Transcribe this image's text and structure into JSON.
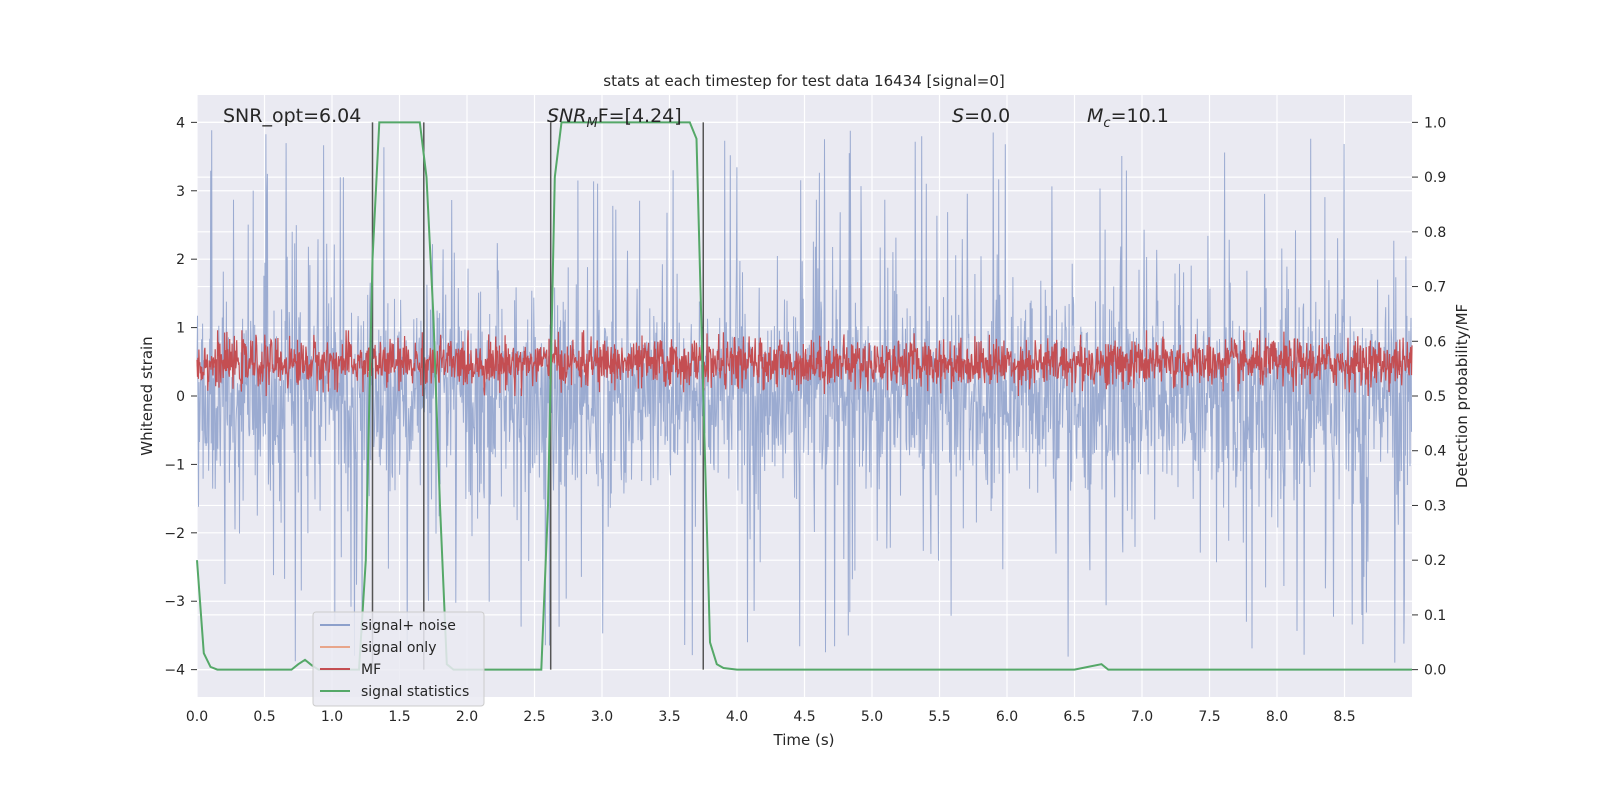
{
  "chart_data": {
    "type": "line",
    "title": "stats at each timestep for test data 16434 [signal=0]",
    "xlabel": "Time (s)",
    "ylabel_left": "Whitened strain",
    "ylabel_right": "Detection probability/MF",
    "xlim": [
      0,
      9.0
    ],
    "ylim_left": [
      -4.4,
      4.4
    ],
    "ylim_right": [
      -0.05,
      1.05
    ],
    "xticks": [
      "0.0",
      "0.5",
      "1.0",
      "1.5",
      "2.0",
      "2.5",
      "3.0",
      "3.5",
      "4.0",
      "4.5",
      "5.0",
      "5.5",
      "6.0",
      "6.5",
      "7.0",
      "7.5",
      "8.0",
      "8.5"
    ],
    "yticks_left": [
      "−4",
      "−3",
      "−2",
      "−1",
      "0",
      "1",
      "2",
      "3",
      "4"
    ],
    "yticks_right": [
      "0.0",
      "0.1",
      "0.2",
      "0.3",
      "0.4",
      "0.5",
      "0.6",
      "0.7",
      "0.8",
      "0.9",
      "1.0"
    ],
    "grid": true,
    "legend_position": "lower-left",
    "legend": [
      {
        "label": "signal+ noise",
        "color": "#8da0cb"
      },
      {
        "label": "signal only",
        "color": "#e8a58a"
      },
      {
        "label": "MF",
        "color": "#c44e52"
      },
      {
        "label": "signal statistics",
        "color": "#55a868"
      }
    ],
    "annotations": {
      "snr_opt": "SNR_opt=6.04",
      "snr_mf_main": "SNR",
      "snr_mf_sub": "M",
      "snr_mf_rest": "F=[4.24]",
      "s_main": "S",
      "s_rest": "=0.0",
      "mc_main": "M",
      "mc_sub": "c",
      "mc_rest": "=10.1"
    },
    "series": [
      {
        "name": "signal+ noise",
        "axis": "left",
        "style": "dense noise, amplitude mostly within ±1.6 with spikes to ±4",
        "envelope": {
          "typical": 1.6,
          "peak_max": 3.93,
          "peak_min": -4.0
        }
      },
      {
        "name": "signal only",
        "axis": "left",
        "values": "zero (not visible)"
      },
      {
        "name": "MF",
        "axis": "right",
        "style": "dense noise band",
        "band": [
          0.5,
          0.62
        ],
        "peak": 0.62
      },
      {
        "name": "signal statistics",
        "axis": "right",
        "x": [
          0.0,
          0.05,
          0.1,
          0.15,
          0.3,
          0.6,
          0.7,
          0.75,
          0.8,
          0.85,
          0.9,
          1.0,
          1.2,
          1.25,
          1.3,
          1.35,
          1.4,
          1.5,
          1.6,
          1.65,
          1.7,
          1.75,
          1.8,
          1.85,
          1.9,
          2.0,
          2.2,
          2.4,
          2.55,
          2.6,
          2.65,
          2.7,
          2.8,
          3.5,
          3.65,
          3.7,
          3.75,
          3.8,
          3.85,
          3.9,
          4.0,
          4.5,
          5.0,
          6.0,
          6.5,
          6.6,
          6.7,
          6.75,
          7.0,
          8.0,
          9.0
        ],
        "values": [
          0.2,
          0.03,
          0.005,
          0.0,
          0.0,
          0.0,
          0.0,
          0.01,
          0.018,
          0.008,
          0.0,
          0.0,
          0.0,
          0.2,
          0.75,
          1.0,
          1.0,
          1.0,
          1.0,
          1.0,
          0.9,
          0.65,
          0.3,
          0.01,
          0.0,
          0.0,
          0.0,
          0.0,
          0.0,
          0.3,
          0.9,
          1.0,
          1.0,
          1.0,
          1.0,
          0.97,
          0.5,
          0.05,
          0.01,
          0.003,
          0.0,
          0.0,
          0.0,
          0.0,
          0.0,
          0.005,
          0.01,
          0.0,
          0.0,
          0.0,
          0.0
        ]
      }
    ],
    "vertical_markers": [
      {
        "x": 1.3,
        "color": "#555555"
      },
      {
        "x": 1.68,
        "color": "#555555"
      },
      {
        "x": 2.62,
        "color": "#555555"
      },
      {
        "x": 3.75,
        "color": "#555555"
      }
    ],
    "colors": {
      "plot_bg": "#eaeaf2",
      "grid": "#ffffff",
      "noise": "#8da0cb",
      "mf": "#c44e52",
      "stat": "#55a868",
      "marker": "#555555"
    }
  }
}
